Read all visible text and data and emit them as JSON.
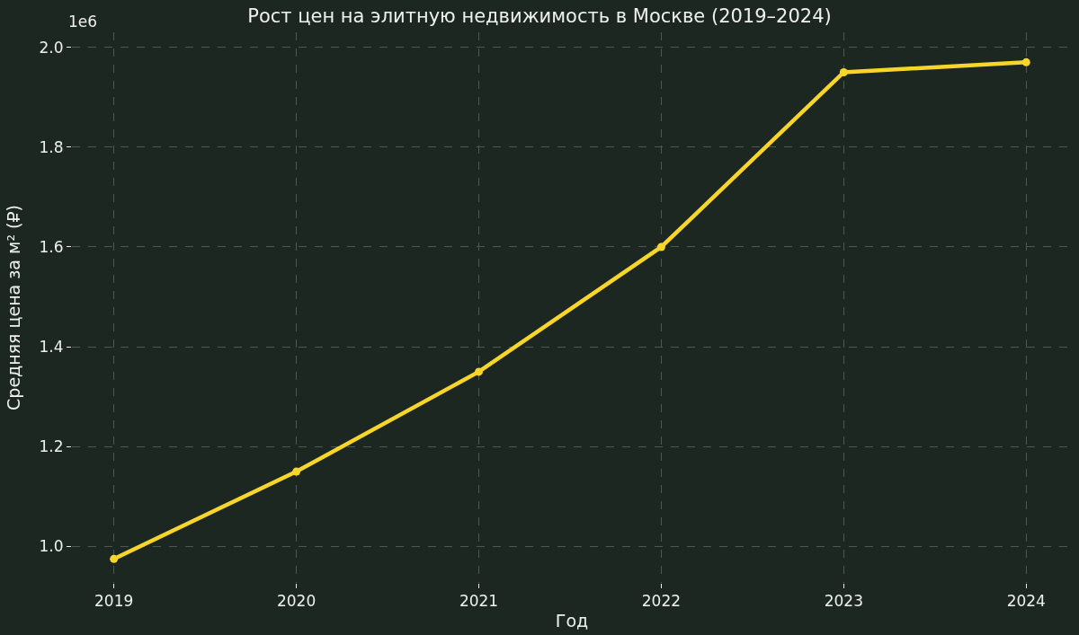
{
  "chart_data": {
    "type": "line",
    "title": "Рост цен на элитную недвижимость в Москве (2019–2024)",
    "xlabel": "Год",
    "ylabel": "Средняя цена за м² (₽)",
    "annotations": [
      "1e6"
    ],
    "x": [
      2019,
      2020,
      2021,
      2022,
      2023,
      2024
    ],
    "series": [
      {
        "color": "#f7d52a",
        "values": [
          0.975,
          1.15,
          1.35,
          1.6,
          1.95,
          1.97
        ]
      }
    ],
    "xlim": [
      2018.77,
      2024.25
    ],
    "xticks": [
      2019,
      2020,
      2021,
      2022,
      2023,
      2024
    ],
    "ylim": [
      0.927,
      2.03
    ],
    "yticks": [
      {
        "value": 1.0,
        "label": "1.0"
      },
      1.2,
      1.4,
      1.6,
      1.8,
      {
        "value": 2.0,
        "label": "2.0"
      }
    ],
    "grid": true,
    "marker": "circle",
    "line_style": "solid"
  }
}
